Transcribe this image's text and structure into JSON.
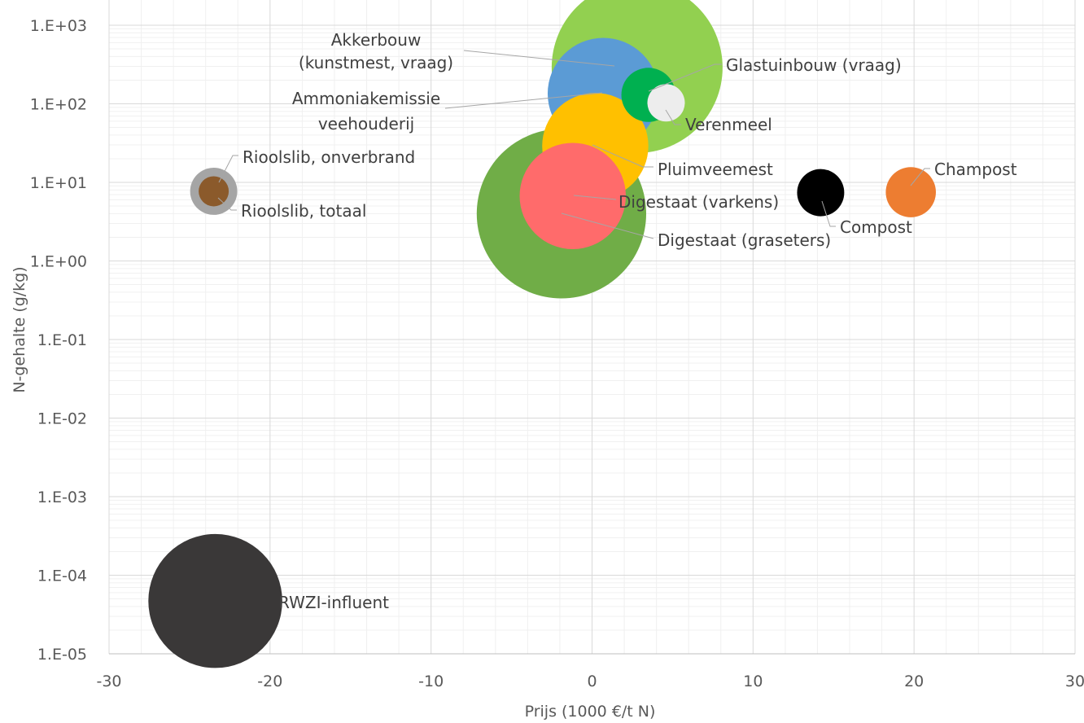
{
  "chart_data": {
    "type": "scatter",
    "variant": "bubble",
    "title": "",
    "xlabel": "Prijs (1000 €/t N)",
    "ylabel": "N-gehalte (g/kg)",
    "xlim": [
      -30,
      30
    ],
    "ylim": [
      1e-05,
      1000
    ],
    "y_scale": "log",
    "grid": true,
    "legend": "none",
    "x_ticks": [
      "-30",
      "-20",
      "-10",
      "0",
      "10",
      "20",
      "30"
    ],
    "y_ticks": [
      "1.E-05",
      "1.E-04",
      "1.E-03",
      "1.E-02",
      "1.E-01",
      "1.E+00",
      "1.E+01",
      "1.E+02",
      "1.E+03"
    ],
    "series": [
      {
        "name": "Akkerbouw (kunstmest, vraag)",
        "label_lines": [
          "Akkerbouw",
          "(kunstmest, vraag)"
        ],
        "x": 2.8,
        "y": 290,
        "relative_size": 1.0,
        "color": "#92D050"
      },
      {
        "name": "Digestaat (graseters)",
        "label_lines": [
          "Digestaat (graseters)"
        ],
        "x": -1.9,
        "y": 4.0,
        "relative_size": 0.983,
        "color": "#70AD47"
      },
      {
        "name": "Ammoniakemissie veehouderij",
        "label_lines": [
          "Ammoniakemissie",
          "veehouderij"
        ],
        "x": 0.7,
        "y": 135,
        "relative_size": 0.424,
        "color": "#5B9BD5"
      },
      {
        "name": "Pluimveemest",
        "label_lines": [
          "Pluimveemest"
        ],
        "x": 0.2,
        "y": 29,
        "relative_size": 0.386,
        "color": "#FFC000"
      },
      {
        "name": "Digestaat (varkens)",
        "label_lines": [
          "Digestaat (varkens)"
        ],
        "x": -1.2,
        "y": 6.7,
        "relative_size": 0.386,
        "color": "#FF6B6B"
      },
      {
        "name": "Glastuinbouw (vraag)",
        "label_lines": [
          "Glastuinbouw (vraag)"
        ],
        "x": 3.5,
        "y": 130,
        "relative_size": 0.1,
        "color": "#00B050"
      },
      {
        "name": "Verenmeel",
        "label_lines": [
          "Verenmeel"
        ],
        "x": 4.6,
        "y": 103,
        "relative_size": 0.048,
        "color": "#EDEDED"
      },
      {
        "name": "Rioolslib, onverbrand",
        "label_lines": [
          "Rioolslib, onverbrand"
        ],
        "x": -23.5,
        "y": 7.7,
        "relative_size": 0.076,
        "color": "#A5A5A5"
      },
      {
        "name": "Rioolslib, totaal",
        "label_lines": [
          "Rioolslib, totaal"
        ],
        "x": -23.5,
        "y": 7.7,
        "relative_size": 0.031,
        "color": "#8B5A2B"
      },
      {
        "name": "Compost",
        "label_lines": [
          "Compost"
        ],
        "x": 14.2,
        "y": 7.4,
        "relative_size": 0.076,
        "color": "#000000"
      },
      {
        "name": "Champost",
        "label_lines": [
          "Champost"
        ],
        "x": 19.8,
        "y": 7.5,
        "relative_size": 0.086,
        "color": "#ED7D31"
      },
      {
        "name": "RWZI-influent",
        "label_lines": [
          "RWZI-influent"
        ],
        "x": -23.4,
        "y": 4.7e-05,
        "relative_size": 0.614,
        "color": "#3A3838"
      }
    ]
  }
}
